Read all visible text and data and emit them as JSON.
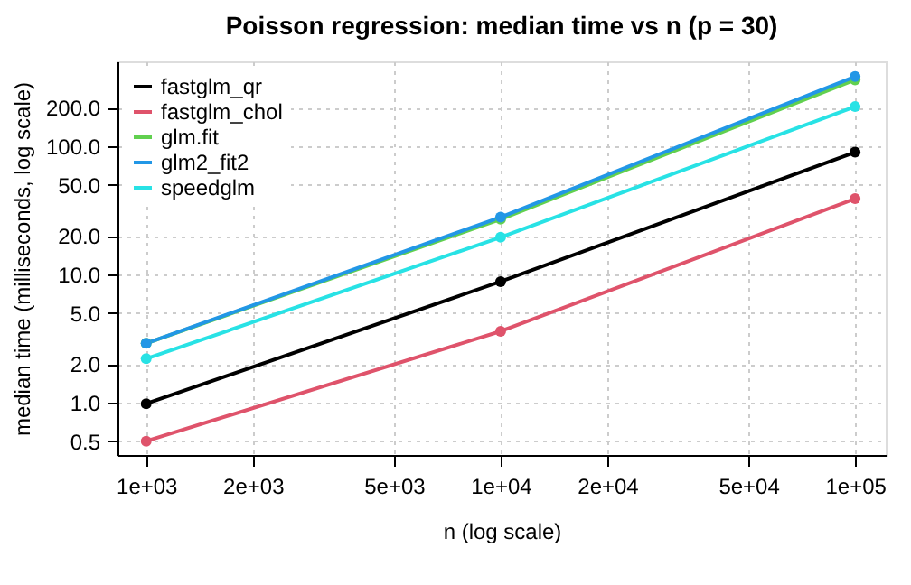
{
  "chart_data": {
    "type": "line",
    "title": "Poisson regression: median time vs n (p = 30)",
    "xlabel": "n (log scale)",
    "ylabel": "median time (milliseconds, log scale)",
    "x": [
      1000,
      10000,
      100000
    ],
    "series": [
      {
        "name": "fastglm_qr",
        "color": "#000000",
        "values": [
          0.98,
          8.8,
          90
        ]
      },
      {
        "name": "fastglm_chol",
        "color": "#df536b",
        "values": [
          0.5,
          3.6,
          39
        ]
      },
      {
        "name": "glm.fit",
        "color": "#61d04f",
        "values": [
          2.9,
          27,
          330
        ]
      },
      {
        "name": "glm2_fit2",
        "color": "#2297e6",
        "values": [
          2.9,
          28,
          350
        ]
      },
      {
        "name": "speedglm",
        "color": "#28e2e5",
        "values": [
          2.2,
          19.5,
          204
        ]
      }
    ],
    "log": "xy",
    "xlim": [
      830,
      122000
    ],
    "ylim": [
      0.39,
      460
    ],
    "xticks": [
      {
        "value": 1000,
        "label": "1e+03"
      },
      {
        "value": 2000,
        "label": "2e+03"
      },
      {
        "value": 5000,
        "label": "5e+03"
      },
      {
        "value": 10000,
        "label": "1e+04"
      },
      {
        "value": 20000,
        "label": "2e+04"
      },
      {
        "value": 50000,
        "label": "5e+04"
      },
      {
        "value": 100000,
        "label": "1e+05"
      }
    ],
    "yticks": [
      0.5,
      {
        "value": 1,
        "label": "1.0"
      },
      {
        "value": 2,
        "label": "2.0"
      },
      {
        "value": 5,
        "label": "5.0"
      },
      {
        "value": 10,
        "label": "10.0"
      },
      {
        "value": 20,
        "label": "20.0"
      },
      {
        "value": 50,
        "label": "50.0"
      },
      {
        "value": 100,
        "label": "100.0"
      },
      {
        "value": 200,
        "label": "200.0"
      }
    ],
    "grid": true,
    "legend": "top left",
    "marker": "circle",
    "line_style": "solid"
  }
}
